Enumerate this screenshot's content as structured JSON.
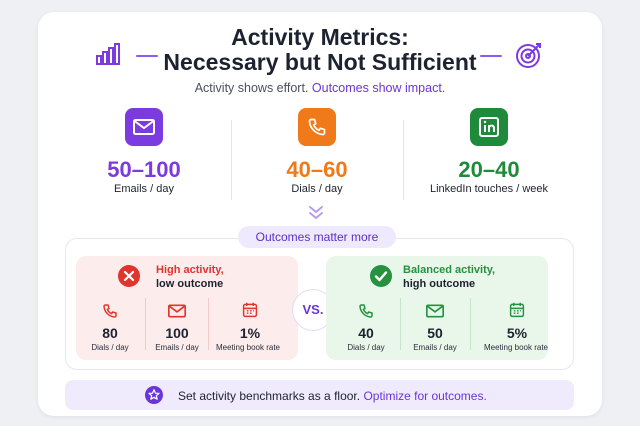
{
  "header": {
    "title_line1": "Activity Metrics:",
    "title_line2": "Necessary but Not Sufficient",
    "subtitle_lead": "Activity shows effort.",
    "subtitle_highlight": "Outcomes show impact."
  },
  "metrics": [
    {
      "value": "50–100",
      "label": "Emails / day",
      "icon": "mail-icon",
      "color": "#7b3be0"
    },
    {
      "value": "40–60",
      "label": "Dials / day",
      "icon": "phone-icon",
      "color": "#f07a1a"
    },
    {
      "value": "20–40",
      "label": "LinkedIn touches / week",
      "icon": "linkedin-icon",
      "color": "#1f8a3a"
    }
  ],
  "comparison": {
    "pill_label": "Outcomes matter more",
    "vs_label": "VS.",
    "high": {
      "title": "High activity,",
      "subtitle": "low outcome",
      "color": "#e0342c",
      "stats": [
        {
          "value": "80",
          "label": "Dials / day",
          "icon": "phone-icon"
        },
        {
          "value": "100",
          "label": "Emails / day",
          "icon": "mail-icon"
        },
        {
          "value": "1%",
          "label": "Meeting book rate",
          "icon": "calendar-icon"
        }
      ]
    },
    "balanced": {
      "title": "Balanced activity,",
      "subtitle": "high outcome",
      "color": "#26913f",
      "stats": [
        {
          "value": "40",
          "label": "Dials / day",
          "icon": "phone-icon"
        },
        {
          "value": "50",
          "label": "Emails / day",
          "icon": "mail-icon"
        },
        {
          "value": "5%",
          "label": "Meeting book rate",
          "icon": "calendar-icon"
        }
      ]
    }
  },
  "footer": {
    "lead": "Set activity benchmarks as a floor.",
    "highlight": "Optimize for outcomes."
  },
  "colors": {
    "accent": "#6a35d8",
    "red": "#e0342c",
    "green": "#26913f",
    "orange": "#f07a1a"
  }
}
